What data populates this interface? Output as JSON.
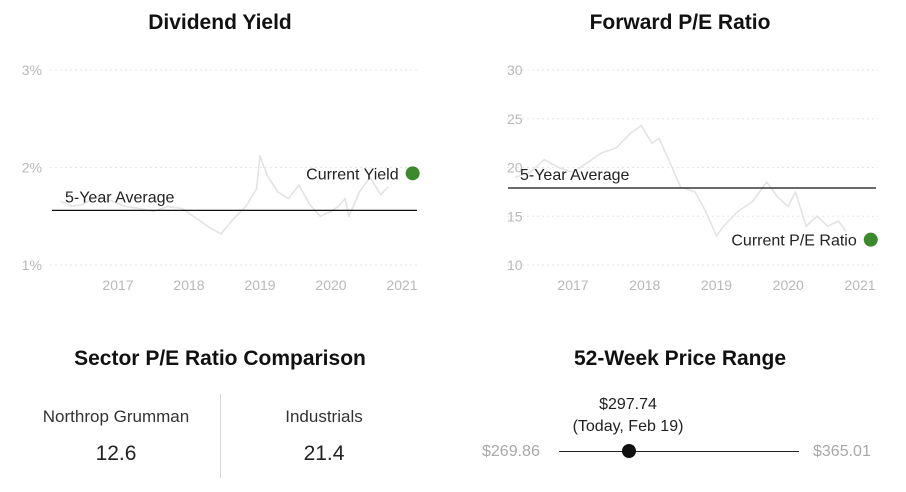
{
  "chart_data": [
    {
      "type": "line",
      "title": "Dividend Yield",
      "y_ticks": [
        "3%",
        "2%",
        "1%"
      ],
      "x_ticks": [
        "2017",
        "2018",
        "2019",
        "2020",
        "2021"
      ],
      "ylim": [
        1,
        3
      ],
      "average": {
        "label": "5-Year Average",
        "value": 1.56
      },
      "current": {
        "label": "Current Yield",
        "x": 2021.15,
        "value": 1.94
      },
      "series_color": "#e3e3e3",
      "accent_color": "#3d8a2e",
      "x": [
        2016.2,
        2016.35,
        2016.5,
        2016.7,
        2016.9,
        2017.1,
        2017.3,
        2017.5,
        2017.7,
        2017.9,
        2018.1,
        2018.3,
        2018.45,
        2018.6,
        2018.8,
        2018.95,
        2019.0,
        2019.1,
        2019.25,
        2019.4,
        2019.55,
        2019.7,
        2019.85,
        2020.0,
        2020.1,
        2020.2,
        2020.25,
        2020.4,
        2020.55,
        2020.7,
        2020.8
      ],
      "values": [
        1.65,
        1.6,
        1.62,
        1.7,
        1.66,
        1.6,
        1.58,
        1.55,
        1.6,
        1.58,
        1.48,
        1.38,
        1.32,
        1.45,
        1.6,
        1.78,
        2.12,
        1.92,
        1.75,
        1.68,
        1.82,
        1.62,
        1.5,
        1.55,
        1.6,
        1.68,
        1.5,
        1.75,
        1.9,
        1.72,
        1.8
      ]
    },
    {
      "type": "line",
      "title": "Forward P/E Ratio",
      "y_ticks": [
        "30",
        "25",
        "20",
        "15",
        "10"
      ],
      "x_ticks": [
        "2017",
        "2018",
        "2019",
        "2020",
        "2021"
      ],
      "ylim": [
        10,
        30
      ],
      "average": {
        "label": "5-Year Average",
        "value": 17.9
      },
      "current": {
        "label": "Current P/E Ratio",
        "x": 2021.15,
        "value": 12.6
      },
      "series_color": "#e3e3e3",
      "accent_color": "#3d8a2e",
      "x": [
        2016.2,
        2016.4,
        2016.6,
        2016.8,
        2017.0,
        2017.2,
        2017.4,
        2017.6,
        2017.8,
        2017.95,
        2018.1,
        2018.2,
        2018.35,
        2018.5,
        2018.7,
        2018.85,
        2019.0,
        2019.1,
        2019.3,
        2019.5,
        2019.7,
        2019.85,
        2020.0,
        2020.1,
        2020.25,
        2020.4,
        2020.55,
        2020.7,
        2020.8
      ],
      "values": [
        19.0,
        19.5,
        20.8,
        20.0,
        19.5,
        20.5,
        21.5,
        22.0,
        23.5,
        24.3,
        22.5,
        23.0,
        20.5,
        18.0,
        17.5,
        15.5,
        13.0,
        14.0,
        15.5,
        16.5,
        18.5,
        17.0,
        16.0,
        17.5,
        14.0,
        15.0,
        14.0,
        14.5,
        13.5
      ]
    }
  ],
  "sector": {
    "title": "Sector P/E Ratio Comparison",
    "company_name": "Northrop Grumman",
    "company_value": "12.6",
    "sector_name": "Industrials",
    "sector_value": "21.4"
  },
  "price_range": {
    "title": "52-Week Price Range",
    "low": "$269.86",
    "high": "$365.01",
    "current": "$297.74",
    "current_note": "(Today, Feb 19)",
    "low_value": 269.86,
    "high_value": 365.01,
    "current_value": 297.74
  }
}
